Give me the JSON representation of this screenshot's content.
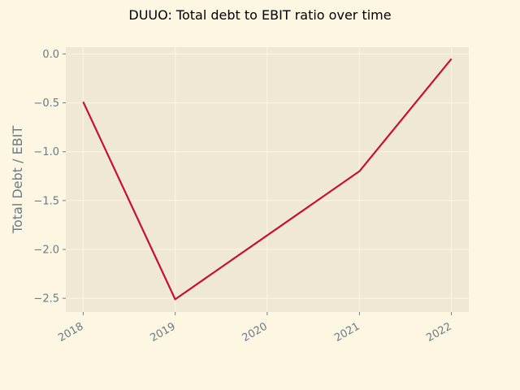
{
  "chart_data": {
    "type": "line",
    "title": "DUUO: Total debt to EBIT ratio over time",
    "xlabel": "",
    "ylabel": "Total Debt / EBIT",
    "x": [
      "2018",
      "2019",
      "2020",
      "2021",
      "2022"
    ],
    "series": [
      {
        "x": [
          "2018",
          "2019",
          "2021",
          "2022"
        ],
        "values": [
          -0.49,
          -2.51,
          -1.2,
          -0.05
        ]
      }
    ],
    "yticks": [
      "−2.5",
      "−2.0",
      "−1.5",
      "−1.0",
      "−0.5",
      "0.0"
    ],
    "ytick_values": [
      -2.5,
      -2.0,
      -1.5,
      -1.0,
      -0.5,
      0.0
    ],
    "ylim": [
      -2.64,
      0.07
    ],
    "grid": true,
    "legend": "none",
    "colors": {
      "background": "#fdf6e3",
      "plot_background": "#eee8d5",
      "grid": "#fdf6e3",
      "line": "#c8102e",
      "tick_text": "#6b7b80"
    }
  }
}
